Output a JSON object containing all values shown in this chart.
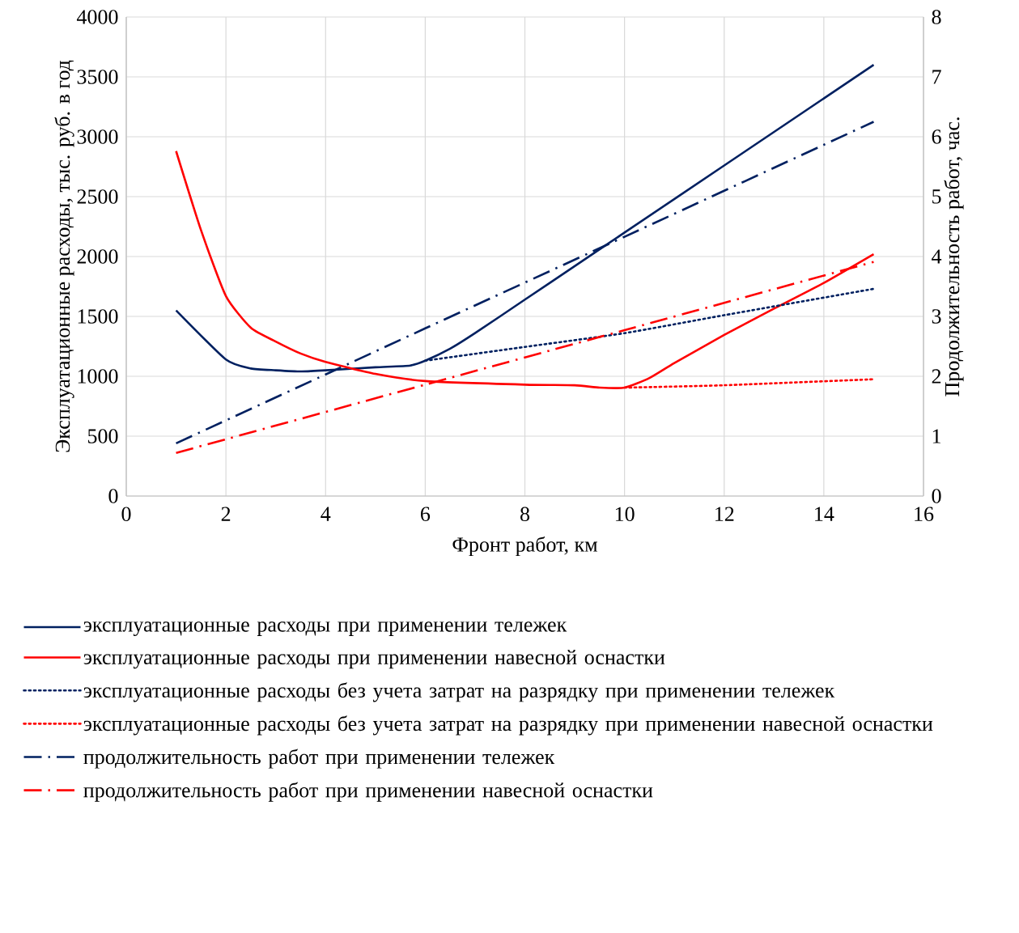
{
  "chart_data": {
    "type": "line",
    "xlabel": "Фронт работ, км",
    "ylabel": "Эксплуатационные расходы, тыс. руб. в год",
    "y2label": "Продолжительность работ, час.",
    "xlim": [
      0,
      16
    ],
    "xticks": [
      0,
      2,
      4,
      6,
      8,
      10,
      12,
      14,
      16
    ],
    "ylim": [
      0,
      4000
    ],
    "yticks": [
      0,
      500,
      1000,
      1500,
      2000,
      2500,
      3000,
      3500,
      4000
    ],
    "y2lim": [
      0,
      8
    ],
    "y2ticks": [
      0,
      1,
      2,
      3,
      4,
      5,
      6,
      7,
      8
    ],
    "grid": true,
    "legend": "bottom",
    "series": [
      {
        "name": "эксплуатационные расходы при применении тележек",
        "color": "#002060",
        "line_style": "solid",
        "x": [
          1,
          2,
          2.5,
          3,
          3.5,
          4,
          5,
          5.7,
          6,
          6.5,
          7,
          8,
          9,
          10,
          12,
          15
        ],
        "values": [
          1550,
          1140,
          1065,
          1050,
          1040,
          1050,
          1075,
          1090,
          1130,
          1230,
          1360,
          1640,
          1920,
          2200,
          2760,
          3600
        ]
      },
      {
        "name": "эксплуатационные расходы при применении навесной оснастки",
        "color": "#ff0000",
        "line_style": "solid",
        "x": [
          1,
          1.5,
          2,
          2.5,
          3,
          3.5,
          4,
          5,
          6,
          8,
          9,
          9.5,
          10,
          10.5,
          11,
          12,
          13,
          14,
          15
        ],
        "values": [
          2880,
          2220,
          1670,
          1405,
          1290,
          1190,
          1120,
          1020,
          960,
          930,
          925,
          905,
          905,
          985,
          1110,
          1345,
          1565,
          1780,
          2020
        ]
      },
      {
        "name": "эксплуатационные расходы без учета затрат на разрядку при применении тележек",
        "color": "#002060",
        "line_style": "dotted",
        "x": [
          6,
          8,
          10,
          12,
          15
        ],
        "values": [
          1130,
          1245,
          1360,
          1510,
          1730
        ]
      },
      {
        "name": "эксплуатационные расходы без учета затрат на разрядку при применении навесной оснастки",
        "color": "#ff0000",
        "line_style": "dotted",
        "x": [
          10,
          12,
          15
        ],
        "values": [
          905,
          925,
          975
        ]
      },
      {
        "name": "продолжительность работ при применении тележек",
        "color": "#002060",
        "line_style": "dashdot",
        "axis": "y2",
        "x": [
          1,
          4,
          6,
          10,
          15
        ],
        "values": [
          0.88,
          2.03,
          2.8,
          4.33,
          6.25
        ]
      },
      {
        "name": "продолжительность работ при применении навесной оснастки",
        "color": "#ff0000",
        "line_style": "dashdot",
        "axis": "y2",
        "x": [
          1,
          6,
          10,
          15
        ],
        "values": [
          0.72,
          1.86,
          2.77,
          3.91
        ]
      }
    ]
  }
}
